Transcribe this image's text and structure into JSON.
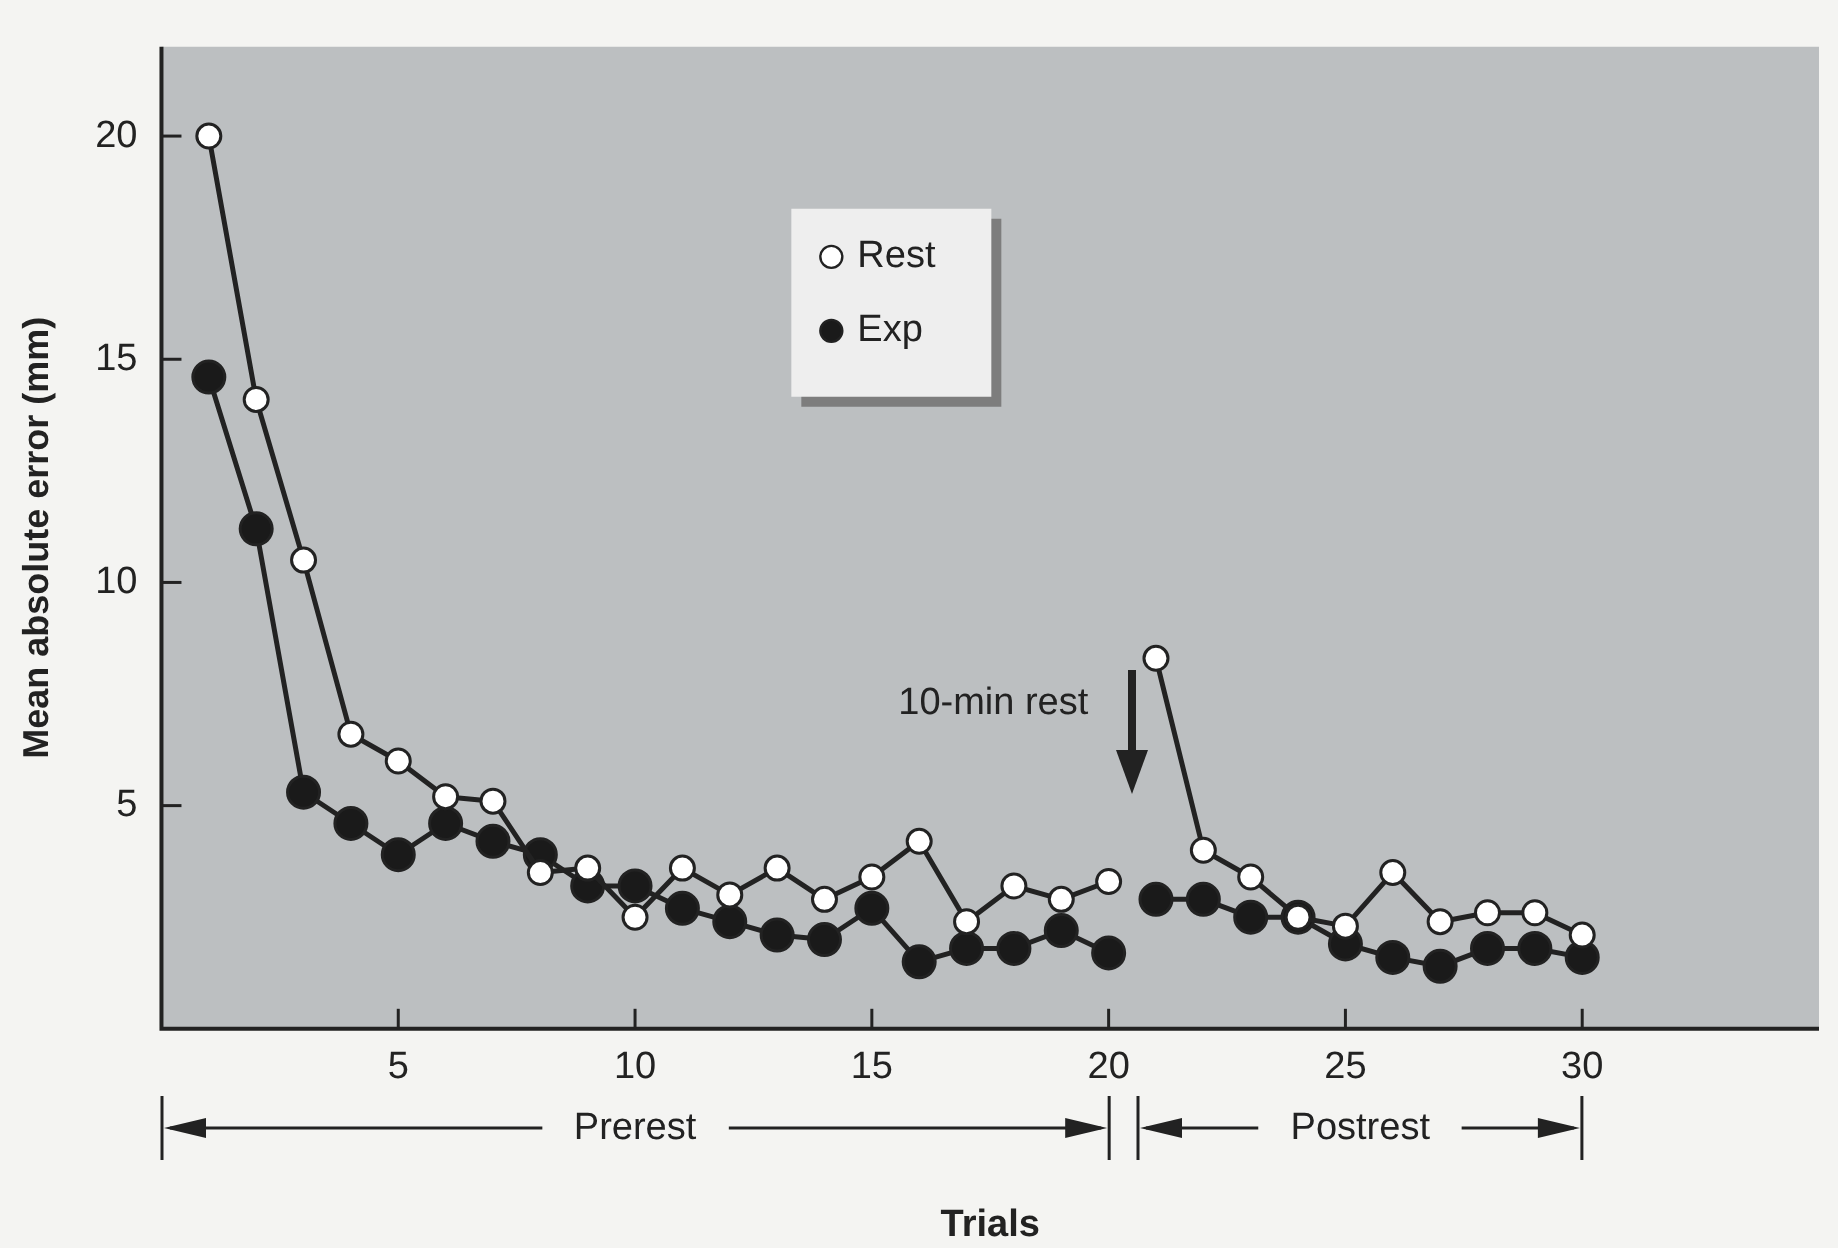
{
  "chart_data": {
    "type": "line",
    "xlabel": "Trials",
    "ylabel": "Mean absolute error (mm)",
    "xlim": [
      0,
      35
    ],
    "xticks": [
      5,
      10,
      15,
      20,
      25,
      30
    ],
    "ylim": [
      0,
      22
    ],
    "yticks": [
      5,
      10,
      15,
      20
    ],
    "grid": false,
    "legend": "top",
    "marker": "circle",
    "line_style": "solid",
    "x": [
      1,
      2,
      3,
      4,
      5,
      6,
      7,
      8,
      9,
      10,
      11,
      12,
      13,
      14,
      15,
      16,
      17,
      18,
      19,
      20,
      20.5,
      21,
      22,
      23,
      24,
      25,
      26,
      27,
      28,
      29,
      30
    ],
    "series": [
      {
        "name": "Rest",
        "color": "#ffffff",
        "values": [
          20.0,
          14.1,
          10.5,
          6.6,
          6.0,
          5.2,
          5.1,
          3.5,
          3.6,
          2.5,
          3.6,
          3.0,
          3.6,
          2.9,
          3.4,
          4.2,
          2.4,
          3.2,
          2.9,
          3.3,
          null,
          8.3,
          4.0,
          3.4,
          2.5,
          2.3,
          3.5,
          2.4,
          2.6,
          2.6,
          2.1
        ]
      },
      {
        "name": "Exp",
        "color": "#1a1a1a",
        "values": [
          14.6,
          11.2,
          5.3,
          4.6,
          3.9,
          4.6,
          4.2,
          3.9,
          3.2,
          3.2,
          2.7,
          2.4,
          2.1,
          2.0,
          2.7,
          1.5,
          1.8,
          1.8,
          2.2,
          1.7,
          null,
          2.9,
          2.9,
          2.5,
          2.5,
          1.9,
          1.6,
          1.4,
          1.8,
          1.8,
          1.6
        ]
      }
    ],
    "annotations": [
      "10-min rest",
      "Prerest",
      "Postrest"
    ]
  }
}
